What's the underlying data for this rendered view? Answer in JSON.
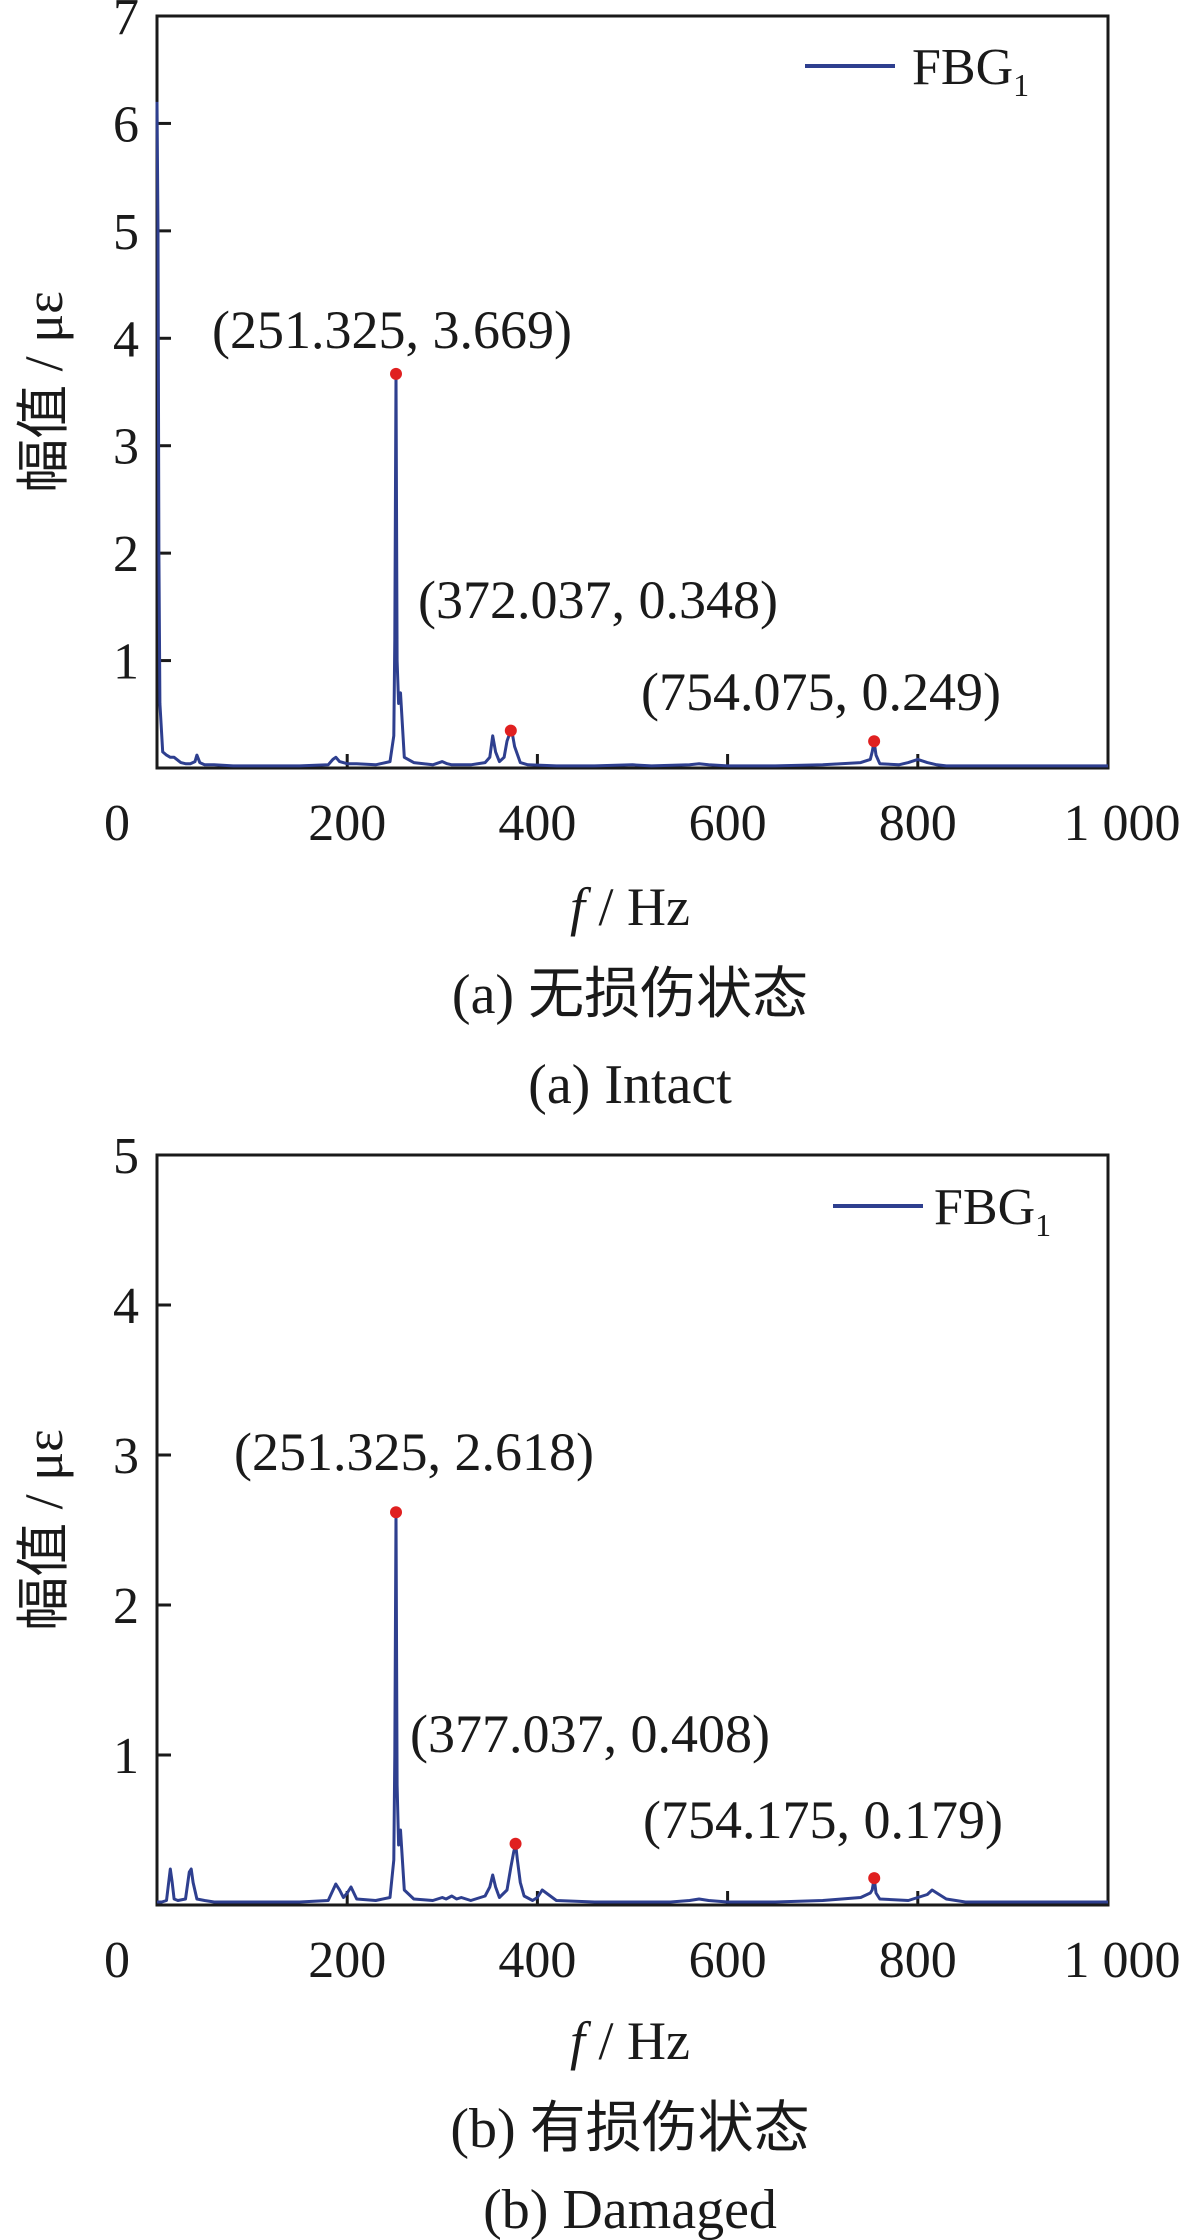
{
  "chart_data": [
    {
      "type": "line",
      "xlabel_var": "f",
      "xlabel_unit": " / Hz",
      "ylabel": "幅值 / με",
      "xlim": [
        0,
        1000
      ],
      "ylim": [
        0,
        7
      ],
      "xticks": [
        0,
        200,
        400,
        600,
        800,
        1000
      ],
      "xtick_labels": [
        "0",
        "200",
        "400",
        "600",
        "800",
        "1 000"
      ],
      "yticks": [
        1,
        2,
        3,
        4,
        5,
        6,
        7
      ],
      "ytick_labels": [
        "1",
        "2",
        "3",
        "4",
        "5",
        "6",
        "7"
      ],
      "legend": {
        "position": "top-right",
        "label": "FBG",
        "label_sub": "1"
      },
      "series_color": "#2e3f8f",
      "marker_color": "#e02020",
      "series": [
        {
          "x": [
            0,
            1,
            2,
            3,
            6,
            10,
            14,
            18,
            25,
            30,
            35,
            40,
            42,
            45,
            50,
            60,
            80,
            100,
            120,
            150,
            180,
            185,
            188,
            192,
            200,
            210,
            230,
            245,
            249,
            250,
            251.325,
            252.5,
            254,
            256,
            260,
            270,
            290,
            300,
            305,
            310,
            330,
            345,
            350,
            353,
            356,
            360,
            365,
            368,
            370,
            372.037,
            374,
            376,
            378,
            382,
            390,
            420,
            460,
            500,
            520,
            560,
            570,
            580,
            600,
            650,
            700,
            740,
            750,
            752,
            754.075,
            756,
            760,
            780,
            790,
            800,
            810,
            820,
            830,
            850,
            900,
            950,
            1000
          ],
          "y": [
            6.2,
            5.0,
            2.0,
            0.6,
            0.15,
            0.12,
            0.1,
            0.1,
            0.05,
            0.04,
            0.04,
            0.06,
            0.12,
            0.05,
            0.03,
            0.03,
            0.02,
            0.02,
            0.02,
            0.02,
            0.03,
            0.08,
            0.1,
            0.06,
            0.04,
            0.04,
            0.03,
            0.06,
            0.3,
            1.2,
            3.669,
            1.0,
            0.6,
            0.7,
            0.1,
            0.05,
            0.03,
            0.06,
            0.04,
            0.03,
            0.03,
            0.05,
            0.1,
            0.3,
            0.15,
            0.06,
            0.1,
            0.25,
            0.3,
            0.348,
            0.3,
            0.2,
            0.15,
            0.05,
            0.03,
            0.02,
            0.02,
            0.03,
            0.02,
            0.03,
            0.04,
            0.03,
            0.02,
            0.02,
            0.03,
            0.05,
            0.08,
            0.15,
            0.249,
            0.12,
            0.04,
            0.03,
            0.05,
            0.08,
            0.05,
            0.03,
            0.02,
            0.02,
            0.02,
            0.02,
            0.02
          ]
        }
      ],
      "peaks": [
        {
          "x": 251.325,
          "y": 3.669,
          "label": "(251.325, 3.669)"
        },
        {
          "x": 372.037,
          "y": 0.348,
          "label": "(372.037, 0.348)"
        },
        {
          "x": 754.075,
          "y": 0.249,
          "label": "(754.075, 0.249)"
        }
      ],
      "caption_cn": "(a)  无损伤状态",
      "caption_en": "(a)  Intact"
    },
    {
      "type": "line",
      "xlabel_var": "f",
      "xlabel_unit": " / Hz",
      "ylabel": "幅值 / με",
      "xlim": [
        0,
        1000
      ],
      "ylim": [
        0,
        5
      ],
      "xticks": [
        0,
        200,
        400,
        600,
        800,
        1000
      ],
      "xtick_labels": [
        "0",
        "200",
        "400",
        "600",
        "800",
        "1 000"
      ],
      "yticks": [
        1,
        2,
        3,
        4,
        5
      ],
      "ytick_labels": [
        "1",
        "2",
        "3",
        "4",
        "5"
      ],
      "legend": {
        "position": "top-right",
        "label": "FBG",
        "label_sub": "1"
      },
      "series_color": "#2e3f8f",
      "marker_color": "#e02020",
      "series": [
        {
          "x": [
            0,
            5,
            10,
            14,
            16,
            18,
            22,
            30,
            34,
            36,
            38,
            42,
            50,
            60,
            100,
            150,
            180,
            188,
            192,
            196,
            200,
            204,
            210,
            230,
            245,
            249,
            250,
            251.325,
            252.5,
            254,
            256,
            260,
            270,
            290,
            300,
            304,
            310,
            315,
            320,
            330,
            345,
            350,
            353,
            356,
            360,
            368,
            372,
            375,
            377.037,
            379,
            382,
            386,
            395,
            400,
            405,
            420,
            460,
            500,
            540,
            560,
            570,
            580,
            600,
            650,
            700,
            740,
            750,
            752,
            754.175,
            756,
            760,
            790,
            800,
            810,
            815,
            820,
            830,
            850,
            900,
            950,
            1000
          ],
          "y": [
            0.02,
            0.02,
            0.03,
            0.24,
            0.15,
            0.04,
            0.03,
            0.04,
            0.22,
            0.24,
            0.15,
            0.04,
            0.03,
            0.02,
            0.02,
            0.02,
            0.03,
            0.14,
            0.1,
            0.05,
            0.08,
            0.12,
            0.04,
            0.03,
            0.05,
            0.3,
            1.0,
            2.618,
            0.8,
            0.4,
            0.5,
            0.1,
            0.04,
            0.03,
            0.05,
            0.04,
            0.06,
            0.04,
            0.05,
            0.03,
            0.06,
            0.12,
            0.2,
            0.12,
            0.05,
            0.1,
            0.25,
            0.35,
            0.408,
            0.3,
            0.15,
            0.06,
            0.03,
            0.05,
            0.1,
            0.03,
            0.02,
            0.02,
            0.02,
            0.03,
            0.04,
            0.03,
            0.02,
            0.02,
            0.03,
            0.05,
            0.08,
            0.1,
            0.179,
            0.08,
            0.04,
            0.03,
            0.05,
            0.07,
            0.1,
            0.08,
            0.04,
            0.02,
            0.02,
            0.02,
            0.02
          ]
        }
      ],
      "peaks": [
        {
          "x": 251.325,
          "y": 2.618,
          "label": "(251.325, 2.618)"
        },
        {
          "x": 377.037,
          "y": 0.408,
          "label": "(377.037, 0.408)"
        },
        {
          "x": 754.175,
          "y": 0.179,
          "label": "(754.175, 0.179)"
        }
      ],
      "caption_cn": "(b)  有损伤状态",
      "caption_en": "(b)  Damaged"
    }
  ]
}
